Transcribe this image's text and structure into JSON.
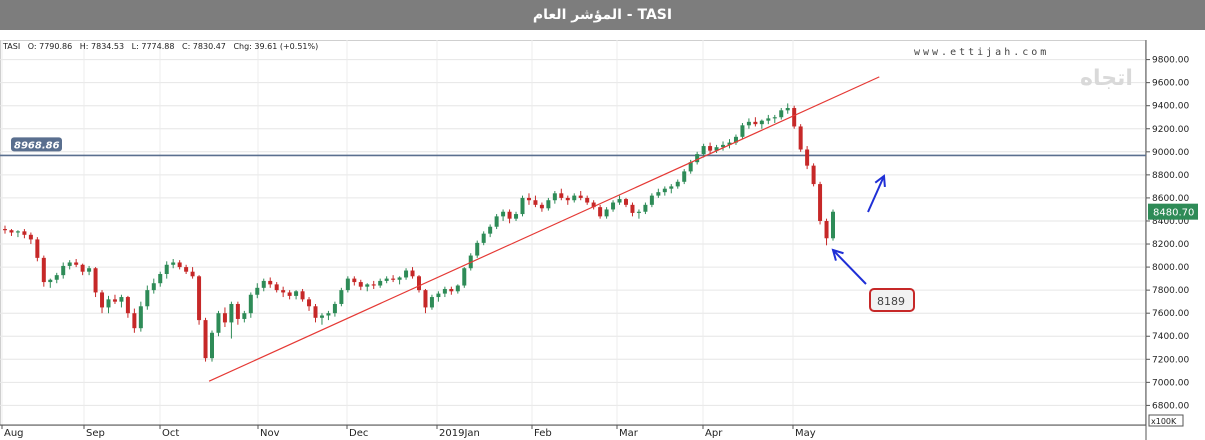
{
  "title": "المؤشر العام - TASI",
  "ohlc": {
    "symbol": "TASI",
    "open": "O: 7790.86",
    "high": "H: 7834.53",
    "low": "L: 7774.88",
    "close": "C: 7830.47",
    "change": "Chg: 39.61 (+0.51%)"
  },
  "website": "www.ettijah.com",
  "watermark": "اتجاه",
  "colors": {
    "up": "#2e8b57",
    "down": "#c62828",
    "trendline": "#e53935",
    "resistance": "#5a6f8f",
    "arrow": "#1f2fd6"
  },
  "chart_data": {
    "type": "candlestick",
    "x_months": [
      "Aug",
      "Sep",
      "Oct",
      "Nov",
      "Dec",
      "2019Jan",
      "Feb",
      "Mar",
      "Apr",
      "May"
    ],
    "y_ticks": [
      6800,
      7000,
      7200,
      7400,
      7600,
      7800,
      8000,
      8200,
      8400,
      8600,
      8800,
      9000,
      9200,
      9400,
      9600,
      9800
    ],
    "ylim": [
      6630,
      9970
    ],
    "y_unit_label": "x100K",
    "grid": true,
    "horizontal_line": {
      "value": 8968.86,
      "label": "8968.86"
    },
    "last_price": {
      "value": 8480.7,
      "label": "8480.70"
    },
    "annotation_low": {
      "value": 8189,
      "label": "8189"
    },
    "trendline": [
      {
        "date": "2018-10-10",
        "value": 7010
      },
      {
        "date": "2019-05-31",
        "value": 9650
      }
    ],
    "candles_note": "open, high, low, close per trading day (approximate, read from chart)",
    "candles": [
      [
        8330,
        8360,
        8290,
        8320
      ],
      [
        8320,
        8330,
        8270,
        8300
      ],
      [
        8300,
        8320,
        8260,
        8310
      ],
      [
        8310,
        8330,
        8250,
        8280
      ],
      [
        8280,
        8300,
        8200,
        8240
      ],
      [
        8240,
        8260,
        8050,
        8080
      ],
      [
        8080,
        8100,
        7830,
        7870
      ],
      [
        7870,
        7900,
        7820,
        7890
      ],
      [
        7890,
        7950,
        7860,
        7930
      ],
      [
        7930,
        8040,
        7900,
        8010
      ],
      [
        8010,
        8060,
        7980,
        8040
      ],
      [
        8040,
        8070,
        8000,
        8020
      ],
      [
        8020,
        8030,
        7930,
        7960
      ],
      [
        7960,
        8010,
        7930,
        7990
      ],
      [
        7990,
        8000,
        7740,
        7780
      ],
      [
        7780,
        7800,
        7600,
        7650
      ],
      [
        7650,
        7750,
        7600,
        7720
      ],
      [
        7720,
        7760,
        7680,
        7700
      ],
      [
        7700,
        7760,
        7650,
        7740
      ],
      [
        7740,
        7750,
        7560,
        7600
      ],
      [
        7600,
        7640,
        7430,
        7470
      ],
      [
        7470,
        7700,
        7440,
        7660
      ],
      [
        7660,
        7840,
        7630,
        7800
      ],
      [
        7800,
        7900,
        7770,
        7860
      ],
      [
        7860,
        7960,
        7830,
        7940
      ],
      [
        7940,
        8050,
        7900,
        8020
      ],
      [
        8020,
        8070,
        7990,
        8040
      ],
      [
        8040,
        8060,
        7980,
        8000
      ],
      [
        8000,
        8020,
        7940,
        7960
      ],
      [
        7960,
        8000,
        7900,
        7920
      ],
      [
        7920,
        7930,
        7500,
        7540
      ],
      [
        7540,
        7560,
        7180,
        7210
      ],
      [
        7210,
        7450,
        7180,
        7430
      ],
      [
        7430,
        7620,
        7400,
        7600
      ],
      [
        7600,
        7650,
        7480,
        7520
      ],
      [
        7520,
        7700,
        7380,
        7680
      ],
      [
        7680,
        7700,
        7500,
        7550
      ],
      [
        7550,
        7620,
        7520,
        7600
      ],
      [
        7600,
        7780,
        7560,
        7760
      ],
      [
        7760,
        7860,
        7730,
        7820
      ],
      [
        7820,
        7900,
        7790,
        7880
      ],
      [
        7880,
        7910,
        7820,
        7850
      ],
      [
        7850,
        7870,
        7780,
        7800
      ],
      [
        7800,
        7830,
        7740,
        7780
      ],
      [
        7780,
        7800,
        7720,
        7750
      ],
      [
        7750,
        7800,
        7720,
        7790
      ],
      [
        7790,
        7810,
        7700,
        7720
      ],
      [
        7720,
        7740,
        7620,
        7660
      ],
      [
        7660,
        7680,
        7520,
        7560
      ],
      [
        7560,
        7600,
        7500,
        7580
      ],
      [
        7580,
        7620,
        7540,
        7600
      ],
      [
        7600,
        7700,
        7570,
        7680
      ],
      [
        7680,
        7820,
        7660,
        7800
      ],
      [
        7800,
        7920,
        7780,
        7900
      ],
      [
        7900,
        7920,
        7840,
        7870
      ],
      [
        7870,
        7890,
        7800,
        7830
      ],
      [
        7830,
        7860,
        7790,
        7850
      ],
      [
        7850,
        7880,
        7810,
        7840
      ],
      [
        7840,
        7900,
        7820,
        7880
      ],
      [
        7880,
        7920,
        7860,
        7900
      ],
      [
        7900,
        7930,
        7870,
        7890
      ],
      [
        7890,
        7920,
        7850,
        7910
      ],
      [
        7910,
        7990,
        7890,
        7970
      ],
      [
        7970,
        8000,
        7900,
        7920
      ],
      [
        7920,
        7930,
        7780,
        7800
      ],
      [
        7800,
        7810,
        7600,
        7650
      ],
      [
        7650,
        7760,
        7630,
        7740
      ],
      [
        7740,
        7790,
        7700,
        7770
      ],
      [
        7770,
        7830,
        7740,
        7810
      ],
      [
        7810,
        7830,
        7760,
        7790
      ],
      [
        7790,
        7850,
        7770,
        7840
      ],
      [
        7840,
        8000,
        7820,
        7990
      ],
      [
        7990,
        8120,
        7970,
        8100
      ],
      [
        8100,
        8230,
        8080,
        8210
      ],
      [
        8210,
        8310,
        8190,
        8290
      ],
      [
        8290,
        8370,
        8260,
        8350
      ],
      [
        8350,
        8460,
        8330,
        8440
      ],
      [
        8440,
        8500,
        8400,
        8480
      ],
      [
        8480,
        8500,
        8380,
        8420
      ],
      [
        8420,
        8480,
        8400,
        8460
      ],
      [
        8460,
        8620,
        8440,
        8600
      ],
      [
        8600,
        8640,
        8540,
        8580
      ],
      [
        8580,
        8620,
        8520,
        8540
      ],
      [
        8540,
        8560,
        8480,
        8510
      ],
      [
        8510,
        8600,
        8490,
        8580
      ],
      [
        8580,
        8660,
        8550,
        8640
      ],
      [
        8640,
        8680,
        8580,
        8600
      ],
      [
        8600,
        8620,
        8540,
        8580
      ],
      [
        8580,
        8640,
        8560,
        8620
      ],
      [
        8620,
        8660,
        8580,
        8600
      ],
      [
        8600,
        8620,
        8540,
        8560
      ],
      [
        8560,
        8580,
        8500,
        8520
      ],
      [
        8520,
        8540,
        8420,
        8440
      ],
      [
        8440,
        8520,
        8420,
        8500
      ],
      [
        8500,
        8580,
        8480,
        8560
      ],
      [
        8560,
        8620,
        8540,
        8590
      ],
      [
        8590,
        8600,
        8520,
        8540
      ],
      [
        8540,
        8560,
        8440,
        8470
      ],
      [
        8470,
        8500,
        8420,
        8480
      ],
      [
        8480,
        8560,
        8460,
        8540
      ],
      [
        8540,
        8640,
        8520,
        8620
      ],
      [
        8620,
        8680,
        8600,
        8650
      ],
      [
        8650,
        8700,
        8620,
        8680
      ],
      [
        8680,
        8720,
        8640,
        8700
      ],
      [
        8700,
        8760,
        8680,
        8740
      ],
      [
        8740,
        8850,
        8720,
        8830
      ],
      [
        8830,
        8930,
        8810,
        8910
      ],
      [
        8910,
        9000,
        8890,
        8980
      ],
      [
        8980,
        9070,
        8950,
        9050
      ],
      [
        9050,
        9080,
        8980,
        9010
      ],
      [
        9010,
        9060,
        8990,
        9040
      ],
      [
        9040,
        9090,
        9010,
        9060
      ],
      [
        9060,
        9110,
        9030,
        9080
      ],
      [
        9080,
        9150,
        9060,
        9130
      ],
      [
        9130,
        9250,
        9110,
        9230
      ],
      [
        9230,
        9290,
        9200,
        9260
      ],
      [
        9260,
        9300,
        9220,
        9240
      ],
      [
        9240,
        9280,
        9200,
        9270
      ],
      [
        9270,
        9320,
        9240,
        9290
      ],
      [
        9290,
        9320,
        9250,
        9300
      ],
      [
        9300,
        9380,
        9280,
        9360
      ],
      [
        9360,
        9420,
        9330,
        9380
      ],
      [
        9380,
        9400,
        9200,
        9220
      ],
      [
        9220,
        9240,
        9000,
        9020
      ],
      [
        9020,
        9050,
        8850,
        8880
      ],
      [
        8880,
        8900,
        8700,
        8720
      ],
      [
        8720,
        8740,
        8370,
        8400
      ],
      [
        8400,
        8420,
        8189,
        8250
      ],
      [
        8250,
        8500,
        8230,
        8480
      ]
    ]
  }
}
